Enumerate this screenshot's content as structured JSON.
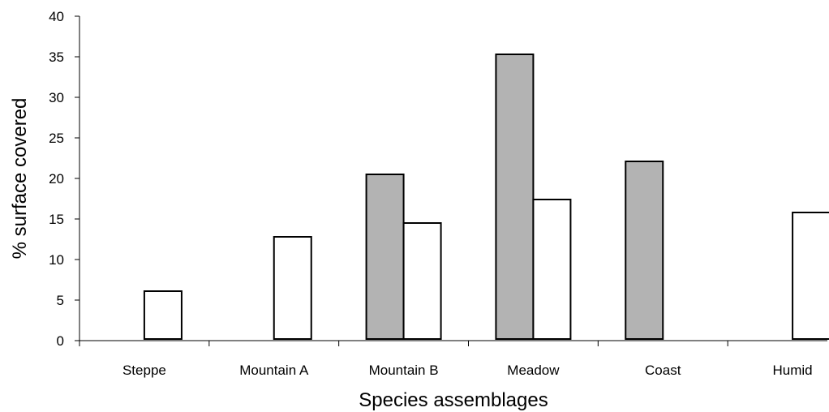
{
  "chart_data": {
    "type": "bar",
    "title": "",
    "xlabel": "Species assemblages",
    "ylabel": "% surface covered",
    "ylim": [
      0,
      40
    ],
    "yticks": [
      0,
      5,
      10,
      15,
      20,
      25,
      30,
      35,
      40
    ],
    "grid": false,
    "categories": [
      "Steppe",
      "Mountain A",
      "Mountain B",
      "Meadow",
      "Coast",
      "Humid"
    ],
    "series": [
      {
        "color": "#b3b3b3",
        "values": [
          0,
          0,
          20.5,
          35.3,
          22.1,
          0
        ]
      },
      {
        "color": "#ffffff",
        "values": [
          6.1,
          12.8,
          14.5,
          17.4,
          0,
          15.8
        ]
      }
    ]
  }
}
